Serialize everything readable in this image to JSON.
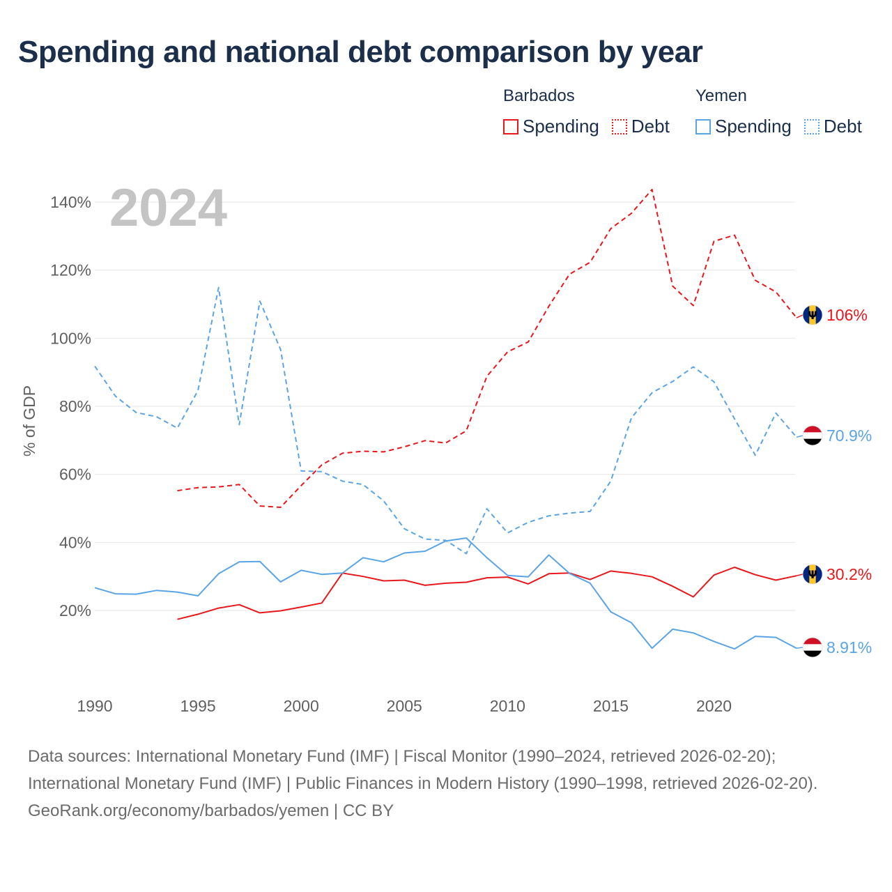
{
  "title": "Spending and national debt comparison by year",
  "legend": {
    "groups": [
      {
        "country": "Barbados",
        "items": [
          {
            "label": "Spending",
            "style": "solid"
          },
          {
            "label": "Debt",
            "style": "dotted"
          }
        ],
        "color": "#e8171c"
      },
      {
        "country": "Yemen",
        "items": [
          {
            "label": "Spending",
            "style": "solid"
          },
          {
            "label": "Debt",
            "style": "dotted"
          }
        ],
        "color": "#5aa4e6"
      }
    ]
  },
  "year_watermark": "2024",
  "footer": {
    "sources": "Data sources: International Monetary Fund (IMF) | Fiscal Monitor (1990–2024, retrieved 2026-02-20); International Monetary Fund (IMF) | Public Finances in Modern History (1990–1998, retrieved 2026-02-20).",
    "credit": "GeoRank.org/economy/barbados/yemen | CC BY"
  },
  "chart_data": {
    "type": "line",
    "title": "Spending and national debt comparison by year",
    "xlabel": "",
    "ylabel": "% of GDP",
    "xlim": [
      1990,
      2024
    ],
    "ylim": [
      0,
      145
    ],
    "x_ticks": [
      1990,
      1995,
      2000,
      2005,
      2010,
      2015,
      2020
    ],
    "y_ticks": [
      20,
      40,
      60,
      80,
      100,
      120,
      140
    ],
    "y_tick_labels": [
      "20%",
      "40%",
      "60%",
      "80%",
      "100%",
      "120%",
      "140%"
    ],
    "grid": true,
    "series": [
      {
        "name": "Barbados Debt",
        "country": "Barbados",
        "measure": "Debt",
        "color": "#e8171c",
        "dash": "dashed",
        "x": [
          1994,
          1995,
          1996,
          1997,
          1998,
          1999,
          2000,
          2001,
          2002,
          2003,
          2004,
          2005,
          2006,
          2007,
          2008,
          2009,
          2010,
          2011,
          2012,
          2013,
          2014,
          2015,
          2016,
          2017,
          2018,
          2019,
          2020,
          2021,
          2022,
          2023,
          2024
        ],
        "values": [
          55.2,
          56.1,
          56.3,
          57.0,
          50.7,
          50.3,
          56.7,
          62.8,
          66.2,
          66.8,
          66.6,
          68.1,
          69.9,
          69.2,
          72.8,
          88.8,
          96.0,
          98.9,
          109.4,
          118.8,
          122.3,
          132.2,
          136.7,
          143.7,
          115.3,
          109.6,
          128.5,
          130.3,
          117.0,
          113.6,
          106.0
        ],
        "end_label": "106%"
      },
      {
        "name": "Yemen Debt",
        "country": "Yemen",
        "measure": "Debt",
        "color": "#5aa4e6",
        "dash": "dashed",
        "x": [
          1990,
          1991,
          1992,
          1993,
          1994,
          1995,
          1996,
          1997,
          1998,
          1999,
          2000,
          2001,
          2002,
          2003,
          2004,
          2005,
          2006,
          2007,
          2008,
          2009,
          2010,
          2011,
          2012,
          2013,
          2014,
          2015,
          2016,
          2017,
          2018,
          2019,
          2020,
          2021,
          2022,
          2023,
          2024
        ],
        "values": [
          91.8,
          83.0,
          78.2,
          76.9,
          73.6,
          84.6,
          114.9,
          74.6,
          110.9,
          96.7,
          61.0,
          60.8,
          58.0,
          57.0,
          52.2,
          44.0,
          41.0,
          40.6,
          36.7,
          49.9,
          42.8,
          45.9,
          47.8,
          48.6,
          49.1,
          58.0,
          76.6,
          84.0,
          87.3,
          91.6,
          87.2,
          76.3,
          65.6,
          78.0,
          70.9
        ],
        "end_label": "70.9%"
      },
      {
        "name": "Barbados Spending",
        "country": "Barbados",
        "measure": "Spending",
        "color": "#e8171c",
        "dash": "solid",
        "x": [
          1994,
          1995,
          1996,
          1997,
          1998,
          1999,
          2000,
          2001,
          2002,
          2003,
          2004,
          2005,
          2006,
          2007,
          2008,
          2009,
          2010,
          2011,
          2012,
          2013,
          2014,
          2015,
          2016,
          2017,
          2018,
          2019,
          2020,
          2021,
          2022,
          2023,
          2024
        ],
        "values": [
          17.4,
          18.9,
          20.7,
          21.7,
          19.3,
          19.9,
          21.0,
          22.2,
          31.0,
          30.0,
          28.7,
          28.9,
          27.4,
          28.0,
          28.3,
          29.6,
          29.8,
          27.8,
          30.8,
          31.0,
          29.1,
          31.6,
          30.9,
          29.9,
          27.1,
          24.0,
          30.4,
          32.7,
          30.5,
          28.9,
          30.2
        ],
        "end_label": "30.2%"
      },
      {
        "name": "Yemen Spending",
        "country": "Yemen",
        "measure": "Spending",
        "color": "#5aa4e6",
        "dash": "solid",
        "x": [
          1990,
          1991,
          1992,
          1993,
          1994,
          1995,
          1996,
          1997,
          1998,
          1999,
          2000,
          2001,
          2002,
          2003,
          2004,
          2005,
          2006,
          2007,
          2008,
          2009,
          2010,
          2011,
          2012,
          2013,
          2014,
          2015,
          2016,
          2017,
          2018,
          2019,
          2020,
          2021,
          2022,
          2023,
          2024
        ],
        "values": [
          26.7,
          24.9,
          24.8,
          25.9,
          25.4,
          24.3,
          30.8,
          34.3,
          34.4,
          28.4,
          31.8,
          30.6,
          31.0,
          35.5,
          34.3,
          36.9,
          37.4,
          40.4,
          41.3,
          35.5,
          30.3,
          29.9,
          36.3,
          30.9,
          28.0,
          19.6,
          16.4,
          8.9,
          14.5,
          13.4,
          10.9,
          8.7,
          12.4,
          12.1,
          8.91
        ],
        "end_label": "8.91%"
      }
    ]
  }
}
